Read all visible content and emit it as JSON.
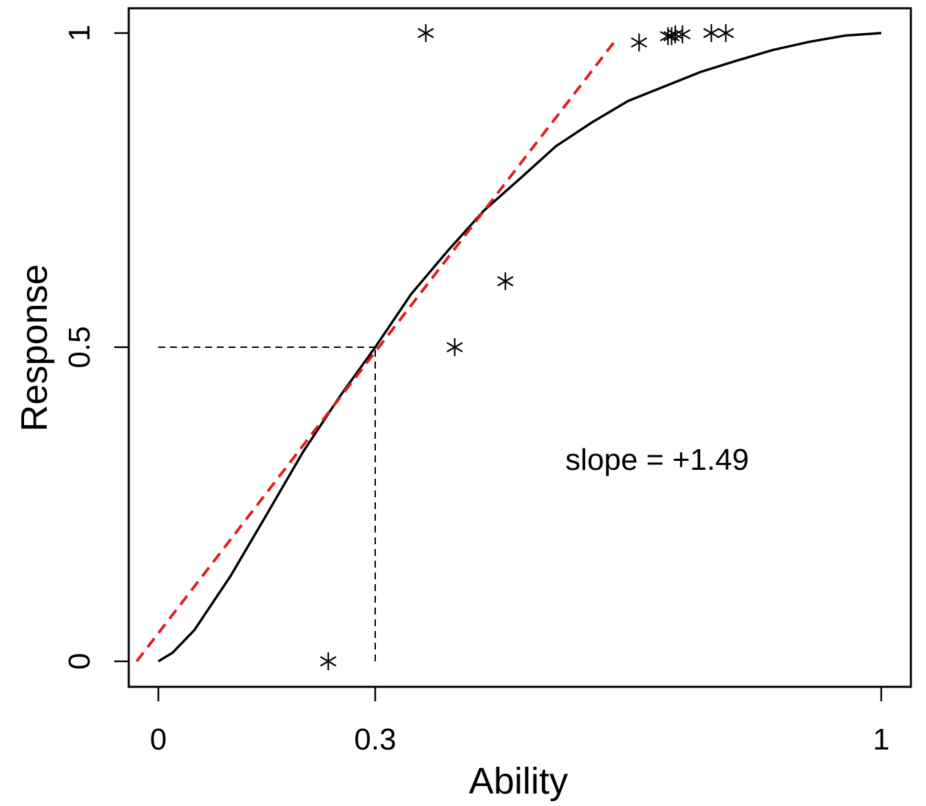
{
  "chart_data": {
    "type": "line",
    "title": "",
    "xlabel": "Ability",
    "ylabel": "Response",
    "xlim": [
      -0.04,
      1.04
    ],
    "ylim": [
      -0.04,
      1.04
    ],
    "x_ticks": [
      {
        "value": 0,
        "label": "0"
      },
      {
        "value": 0.3,
        "label": "0.3"
      },
      {
        "value": 1,
        "label": "1"
      }
    ],
    "y_ticks": [
      {
        "value": 0,
        "label": "0"
      },
      {
        "value": 0.5,
        "label": "0.5"
      },
      {
        "value": 1,
        "label": "1"
      }
    ],
    "grid": false,
    "series": [
      {
        "name": "fitted response curve",
        "style": "solid",
        "color": "#000000",
        "x": [
          0.0,
          0.02,
          0.05,
          0.1,
          0.15,
          0.2,
          0.25,
          0.3,
          0.35,
          0.4,
          0.45,
          0.5,
          0.55,
          0.6,
          0.65,
          0.7,
          0.75,
          0.8,
          0.85,
          0.9,
          0.95,
          1.0
        ],
        "y": [
          0.0,
          0.014,
          0.05,
          0.136,
          0.234,
          0.333,
          0.42,
          0.5,
          0.585,
          0.653,
          0.717,
          0.768,
          0.82,
          0.858,
          0.892,
          0.915,
          0.938,
          0.956,
          0.973,
          0.986,
          0.996,
          1.0
        ]
      },
      {
        "name": "tangent line",
        "style": "dashed",
        "color": "#e41a1c",
        "x": [
          -0.03,
          0.63
        ],
        "y": [
          0.0,
          0.985
        ]
      }
    ],
    "reference_lines": [
      {
        "name": "horizontal guide",
        "from": [
          0.0,
          0.5
        ],
        "to": [
          0.3,
          0.5
        ]
      },
      {
        "name": "vertical guide",
        "from": [
          0.3,
          0.0
        ],
        "to": [
          0.3,
          0.5
        ]
      }
    ],
    "points": {
      "marker": "asterisk",
      "x": [
        0.235,
        0.37,
        0.41,
        0.48,
        0.665,
        0.705,
        0.71,
        0.715,
        0.725,
        0.765,
        0.785
      ],
      "y": [
        0.0,
        1.0,
        0.5,
        0.605,
        0.985,
        0.995,
        0.995,
        0.998,
        0.998,
        1.0,
        1.0
      ]
    },
    "annotations": [
      {
        "text": "slope = +1.49",
        "x": 0.69,
        "y": 0.305
      }
    ]
  }
}
